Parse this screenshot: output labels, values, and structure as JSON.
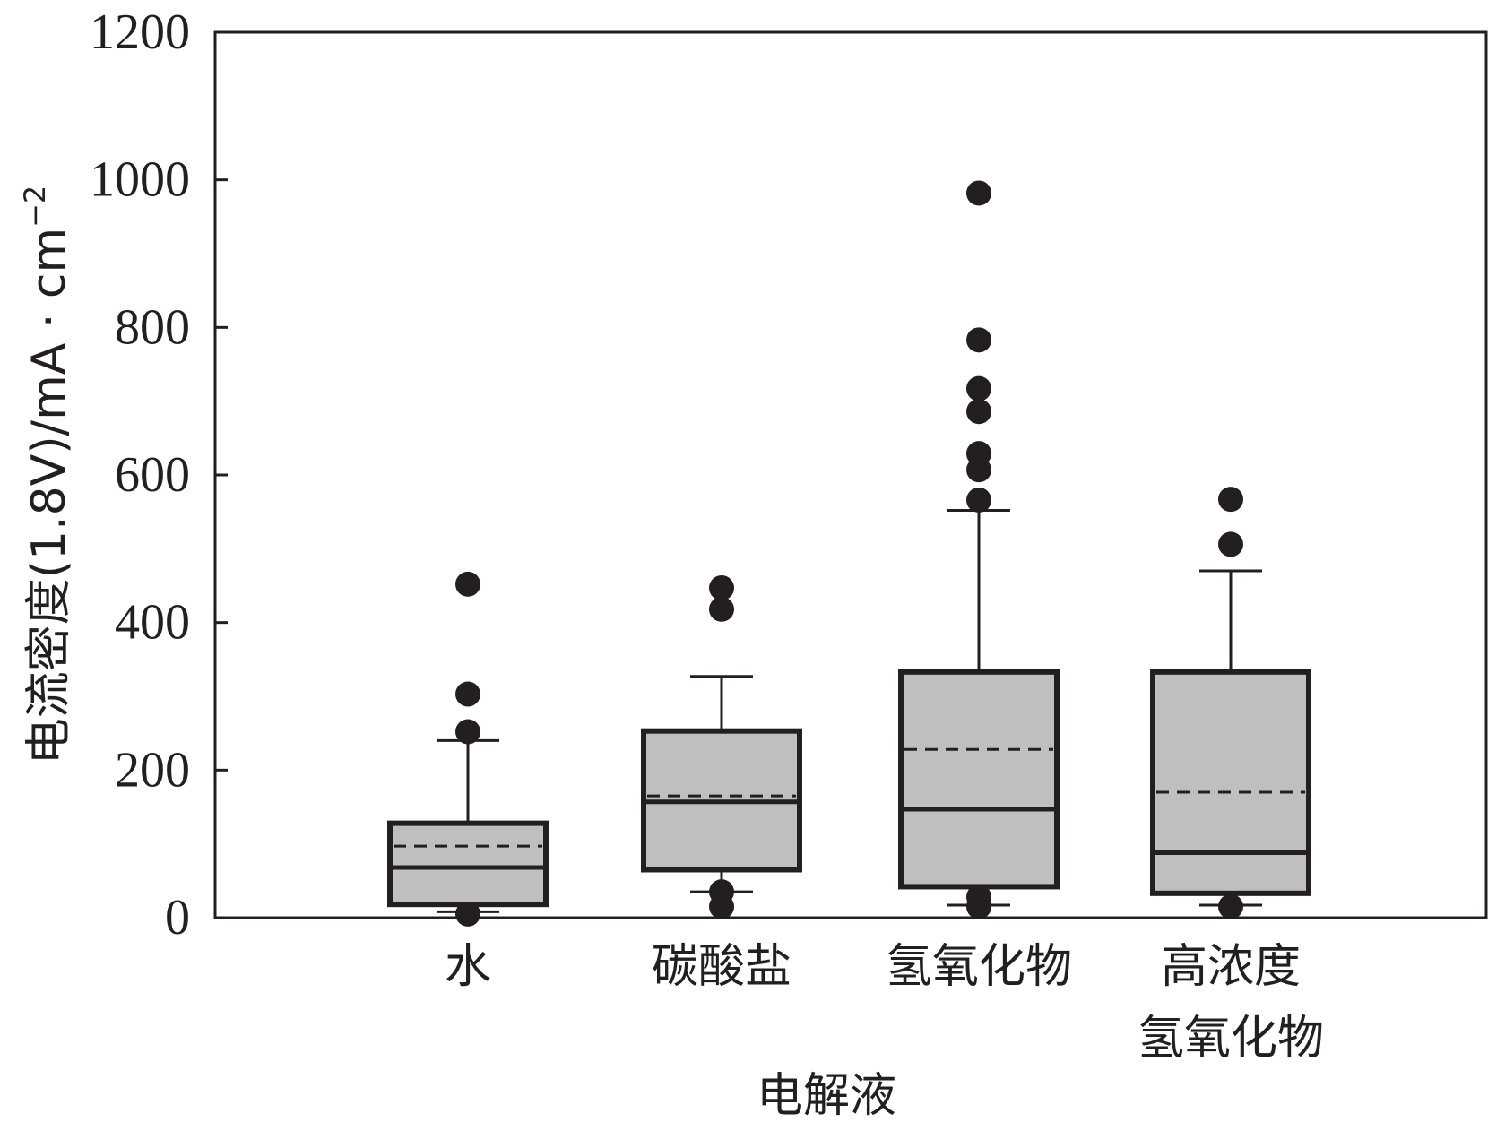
{
  "chart_data": {
    "type": "box",
    "xlabel": "电解液",
    "ylabel": {
      "main": "电流密度(1.8V)/mA · cm",
      "superscript": "−2"
    },
    "ylim": [
      0,
      1200
    ],
    "yticks": [
      0,
      200,
      400,
      600,
      800,
      1000,
      1200
    ],
    "grid": false,
    "categories": [
      {
        "lines": [
          "水"
        ]
      },
      {
        "lines": [
          "碳酸盐"
        ]
      },
      {
        "lines": [
          "氢氧化物"
        ]
      },
      {
        "lines": [
          "高浓度",
          "氢氧化物"
        ]
      }
    ],
    "boxes": [
      {
        "whisker_low": 8,
        "q1": 18,
        "median": 68,
        "mean": 97,
        "q3": 128,
        "whisker_high": 240,
        "outliers": [
          5,
          252,
          303,
          452
        ]
      },
      {
        "whisker_low": 35,
        "q1": 65,
        "median": 157,
        "mean": 165,
        "q3": 253,
        "whisker_high": 327,
        "outliers": [
          15,
          35,
          418,
          447
        ]
      },
      {
        "whisker_low": 17,
        "q1": 42,
        "median": 147,
        "mean": 228,
        "q3": 333,
        "whisker_high": 552,
        "outliers": [
          15,
          28,
          566,
          607,
          629,
          686,
          717,
          783,
          982
        ]
      },
      {
        "whisker_low": 17,
        "q1": 33,
        "median": 88,
        "mean": 170,
        "q3": 333,
        "whisker_high": 470,
        "outliers": [
          15,
          506,
          567
        ]
      }
    ],
    "colors": {
      "box_fill": "#bfbfbf",
      "stroke": "#231f20",
      "background": "#ffffff"
    }
  }
}
